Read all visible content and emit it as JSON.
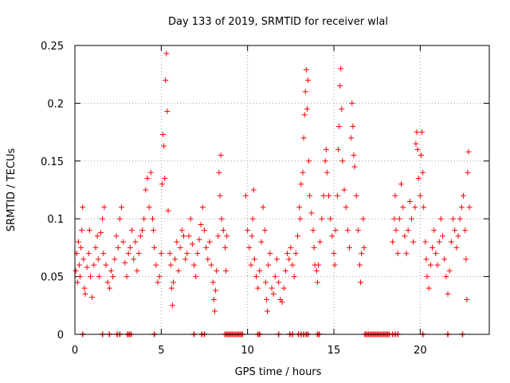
{
  "chart_data": {
    "type": "scatter",
    "title": "Day 133 of 2019, SRMTID for receiver wlal",
    "xlabel": "GPS time / hours",
    "ylabel": "SRMTID / TECUs",
    "xlim": [
      0,
      24
    ],
    "ylim": [
      0,
      0.25
    ],
    "grid": true,
    "x_ticks": [
      0,
      5,
      10,
      15,
      20
    ],
    "x_tick_labels": [
      "0",
      "5",
      "10",
      "15",
      "20"
    ],
    "y_ticks": [
      0,
      0.05,
      0.1,
      0.15,
      0.2,
      0.25
    ],
    "y_tick_labels": [
      "0",
      "0.05",
      "0.1",
      "0.15",
      "0.2",
      "0.25"
    ],
    "series": [
      {
        "name": "SRMTID",
        "color": "#ff0000",
        "marker": "plus",
        "points": [
          [
            0.05,
            0.055
          ],
          [
            0.1,
            0.07
          ],
          [
            0.15,
            0.045
          ],
          [
            0.2,
            0.08
          ],
          [
            0.25,
            0.06
          ],
          [
            0.3,
            0.05
          ],
          [
            0.35,
            0.075
          ],
          [
            0.4,
            0.09
          ],
          [
            0.45,
            0.11
          ],
          [
            0.5,
            0.065
          ],
          [
            0.55,
            0.04
          ],
          [
            0.6,
            0.035
          ],
          [
            0.7,
            0.058
          ],
          [
            0.8,
            0.07
          ],
          [
            0.85,
            0.09
          ],
          [
            0.9,
            0.05
          ],
          [
            1.0,
            0.032
          ],
          [
            1.1,
            0.06
          ],
          [
            1.2,
            0.075
          ],
          [
            1.3,
            0.085
          ],
          [
            1.35,
            0.065
          ],
          [
            1.4,
            0.05
          ],
          [
            1.5,
            0.088
          ],
          [
            1.6,
            0.1
          ],
          [
            1.65,
            0.07
          ],
          [
            1.7,
            0.11
          ],
          [
            1.8,
            0.06
          ],
          [
            1.9,
            0.045
          ],
          [
            2.0,
            0.04
          ],
          [
            2.1,
            0.055
          ],
          [
            2.2,
            0.05
          ],
          [
            2.3,
            0.065
          ],
          [
            2.4,
            0.085
          ],
          [
            2.5,
            0.075
          ],
          [
            2.6,
            0.1
          ],
          [
            2.7,
            0.11
          ],
          [
            2.8,
            0.08
          ],
          [
            2.9,
            0.062
          ],
          [
            3.0,
            0.05
          ],
          [
            3.1,
            0.07
          ],
          [
            3.2,
            0.075
          ],
          [
            3.3,
            0.09
          ],
          [
            3.4,
            0.065
          ],
          [
            3.5,
            0.08
          ],
          [
            3.6,
            0.055
          ],
          [
            3.7,
            0.07
          ],
          [
            3.8,
            0.085
          ],
          [
            3.9,
            0.09
          ],
          [
            4.0,
            0.1
          ],
          [
            4.1,
            0.125
          ],
          [
            4.2,
            0.135
          ],
          [
            4.3,
            0.11
          ],
          [
            4.4,
            0.14
          ],
          [
            4.5,
            0.1
          ],
          [
            4.55,
            0.09
          ],
          [
            4.6,
            0.075
          ],
          [
            4.7,
            0.06
          ],
          [
            4.8,
            0.045
          ],
          [
            4.9,
            0.05
          ],
          [
            5.0,
            0.07
          ],
          [
            5.05,
            0.13
          ],
          [
            5.1,
            0.173
          ],
          [
            5.15,
            0.163
          ],
          [
            5.2,
            0.135
          ],
          [
            5.25,
            0.22
          ],
          [
            5.3,
            0.243
          ],
          [
            5.35,
            0.193
          ],
          [
            5.4,
            0.107
          ],
          [
            5.5,
            0.07
          ],
          [
            5.55,
            0.06
          ],
          [
            5.6,
            0.04
          ],
          [
            5.65,
            0.025
          ],
          [
            5.7,
            0.045
          ],
          [
            5.8,
            0.065
          ],
          [
            5.9,
            0.08
          ],
          [
            6.0,
            0.055
          ],
          [
            6.1,
            0.075
          ],
          [
            6.2,
            0.09
          ],
          [
            6.3,
            0.085
          ],
          [
            6.4,
            0.065
          ],
          [
            6.5,
            0.07
          ],
          [
            6.6,
            0.085
          ],
          [
            6.7,
            0.1
          ],
          [
            6.8,
            0.078
          ],
          [
            6.9,
            0.06
          ],
          [
            7.0,
            0.05
          ],
          [
            7.1,
            0.07
          ],
          [
            7.2,
            0.082
          ],
          [
            7.3,
            0.095
          ],
          [
            7.4,
            0.11
          ],
          [
            7.5,
            0.09
          ],
          [
            7.6,
            0.075
          ],
          [
            7.7,
            0.065
          ],
          [
            7.8,
            0.08
          ],
          [
            7.9,
            0.06
          ],
          [
            8.0,
            0.045
          ],
          [
            8.05,
            0.03
          ],
          [
            8.1,
            0.02
          ],
          [
            8.15,
            0.038
          ],
          [
            8.2,
            0.055
          ],
          [
            8.3,
            0.085
          ],
          [
            8.35,
            0.14
          ],
          [
            8.4,
            0.12
          ],
          [
            8.45,
            0.155
          ],
          [
            8.5,
            0.1
          ],
          [
            8.6,
            0.09
          ],
          [
            8.7,
            0.075
          ],
          [
            8.75,
            0.055
          ],
          [
            8.8,
            0.085
          ],
          [
            9.9,
            0.12
          ],
          [
            10.0,
            0.09
          ],
          [
            10.1,
            0.075
          ],
          [
            10.2,
            0.06
          ],
          [
            10.25,
            0.085
          ],
          [
            10.3,
            0.1
          ],
          [
            10.35,
            0.125
          ],
          [
            10.4,
            0.065
          ],
          [
            10.5,
            0.05
          ],
          [
            10.6,
            0.04
          ],
          [
            10.7,
            0.055
          ],
          [
            10.8,
            0.08
          ],
          [
            10.9,
            0.11
          ],
          [
            11.0,
            0.09
          ],
          [
            11.05,
            0.045
          ],
          [
            11.1,
            0.03
          ],
          [
            11.15,
            0.02
          ],
          [
            11.2,
            0.06
          ],
          [
            11.3,
            0.07
          ],
          [
            11.4,
            0.04
          ],
          [
            11.5,
            0.035
          ],
          [
            11.6,
            0.05
          ],
          [
            11.7,
            0.065
          ],
          [
            11.8,
            0.045
          ],
          [
            11.9,
            0.03
          ],
          [
            12.0,
            0.028
          ],
          [
            12.1,
            0.04
          ],
          [
            12.2,
            0.055
          ],
          [
            12.3,
            0.07
          ],
          [
            12.4,
            0.065
          ],
          [
            12.5,
            0.075
          ],
          [
            12.6,
            0.06
          ],
          [
            12.7,
            0.05
          ],
          [
            12.8,
            0.07
          ],
          [
            12.9,
            0.085
          ],
          [
            13.0,
            0.11
          ],
          [
            13.05,
            0.1
          ],
          [
            13.1,
            0.13
          ],
          [
            13.2,
            0.14
          ],
          [
            13.25,
            0.17
          ],
          [
            13.3,
            0.19
          ],
          [
            13.35,
            0.21
          ],
          [
            13.4,
            0.229
          ],
          [
            13.45,
            0.195
          ],
          [
            13.5,
            0.22
          ],
          [
            13.55,
            0.15
          ],
          [
            13.6,
            0.12
          ],
          [
            13.7,
            0.105
          ],
          [
            13.8,
            0.09
          ],
          [
            13.85,
            0.075
          ],
          [
            13.9,
            0.06
          ],
          [
            14.0,
            0.055
          ],
          [
            14.05,
            0.045
          ],
          [
            14.1,
            0.06
          ],
          [
            14.2,
            0.08
          ],
          [
            14.3,
            0.1
          ],
          [
            14.4,
            0.12
          ],
          [
            14.5,
            0.15
          ],
          [
            14.55,
            0.16
          ],
          [
            14.6,
            0.14
          ],
          [
            14.7,
            0.12
          ],
          [
            14.8,
            0.1
          ],
          [
            14.9,
            0.085
          ],
          [
            15.0,
            0.07
          ],
          [
            15.05,
            0.06
          ],
          [
            15.1,
            0.09
          ],
          [
            15.2,
            0.12
          ],
          [
            15.25,
            0.16
          ],
          [
            15.3,
            0.18
          ],
          [
            15.35,
            0.215
          ],
          [
            15.4,
            0.23
          ],
          [
            15.45,
            0.195
          ],
          [
            15.5,
            0.15
          ],
          [
            15.6,
            0.125
          ],
          [
            15.7,
            0.11
          ],
          [
            15.8,
            0.09
          ],
          [
            15.9,
            0.075
          ],
          [
            16.0,
            0.17
          ],
          [
            16.05,
            0.2
          ],
          [
            16.1,
            0.18
          ],
          [
            16.15,
            0.155
          ],
          [
            16.2,
            0.145
          ],
          [
            16.3,
            0.12
          ],
          [
            16.4,
            0.09
          ],
          [
            16.5,
            0.06
          ],
          [
            16.55,
            0.045
          ],
          [
            16.6,
            0.07
          ],
          [
            16.7,
            0.1
          ],
          [
            16.75,
            0.075
          ],
          [
            18.4,
            0.08
          ],
          [
            18.5,
            0.1
          ],
          [
            18.55,
            0.12
          ],
          [
            18.6,
            0.09
          ],
          [
            18.7,
            0.07
          ],
          [
            18.8,
            0.1
          ],
          [
            18.9,
            0.13
          ],
          [
            19.0,
            0.11
          ],
          [
            19.1,
            0.085
          ],
          [
            19.2,
            0.07
          ],
          [
            19.3,
            0.09
          ],
          [
            19.4,
            0.115
          ],
          [
            19.5,
            0.1
          ],
          [
            19.6,
            0.08
          ],
          [
            19.7,
            0.11
          ],
          [
            19.75,
            0.165
          ],
          [
            19.8,
            0.175
          ],
          [
            19.85,
            0.16
          ],
          [
            19.9,
            0.135
          ],
          [
            20.0,
            0.12
          ],
          [
            20.05,
            0.155
          ],
          [
            20.1,
            0.175
          ],
          [
            20.15,
            0.14
          ],
          [
            20.2,
            0.11
          ],
          [
            20.3,
            0.08
          ],
          [
            20.35,
            0.065
          ],
          [
            20.4,
            0.05
          ],
          [
            20.5,
            0.04
          ],
          [
            20.6,
            0.06
          ],
          [
            20.7,
            0.075
          ],
          [
            20.8,
            0.09
          ],
          [
            20.9,
            0.07
          ],
          [
            21.0,
            0.06
          ],
          [
            21.1,
            0.08
          ],
          [
            21.2,
            0.1
          ],
          [
            21.3,
            0.085
          ],
          [
            21.4,
            0.065
          ],
          [
            21.5,
            0.05
          ],
          [
            21.6,
            0.035
          ],
          [
            21.7,
            0.055
          ],
          [
            21.8,
            0.08
          ],
          [
            21.9,
            0.1
          ],
          [
            22.0,
            0.09
          ],
          [
            22.1,
            0.075
          ],
          [
            22.2,
            0.085
          ],
          [
            22.3,
            0.1
          ],
          [
            22.4,
            0.11
          ],
          [
            22.5,
            0.12
          ],
          [
            22.6,
            0.09
          ],
          [
            22.65,
            0.065
          ],
          [
            22.7,
            0.03
          ],
          [
            22.75,
            0.14
          ],
          [
            22.8,
            0.158
          ],
          [
            22.85,
            0.11
          ]
        ]
      }
    ],
    "ground_markers": {
      "name": "markers at y=0",
      "x": [
        0.45,
        1.6,
        2.0,
        2.45,
        2.6,
        3.05,
        3.15,
        3.25,
        4.6,
        6.9,
        7.35,
        7.5,
        8.7,
        8.8,
        8.9,
        9.0,
        9.1,
        9.2,
        9.3,
        9.4,
        9.5,
        9.6,
        9.7,
        10.6,
        10.7,
        11.8,
        12.45,
        12.6,
        12.95,
        13.1,
        13.25,
        13.4,
        13.5,
        14.05,
        14.15,
        16.8,
        16.9,
        17.0,
        17.1,
        17.2,
        17.3,
        17.4,
        17.5,
        17.6,
        17.7,
        17.8,
        17.9,
        18.0,
        18.1,
        18.2,
        18.4,
        18.55,
        18.7,
        20.15,
        21.6,
        22.45
      ]
    }
  }
}
